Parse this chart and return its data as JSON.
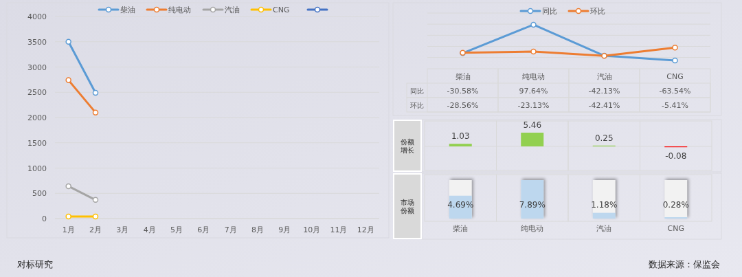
{
  "chart_data": [
    {
      "type": "line",
      "categories": [
        "1月",
        "2月",
        "3月",
        "4月",
        "5月",
        "6月",
        "7月",
        "8月",
        "9月",
        "10月",
        "11月",
        "12月"
      ],
      "series": [
        {
          "name": "柴油",
          "color": "#5b9bd5",
          "values": [
            3500,
            2490,
            null,
            null,
            null,
            null,
            null,
            null,
            null,
            null,
            null,
            null
          ]
        },
        {
          "name": "纯电动",
          "color": "#ed7d31",
          "values": [
            2740,
            2100,
            null,
            null,
            null,
            null,
            null,
            null,
            null,
            null,
            null,
            null
          ]
        },
        {
          "name": "汽油",
          "color": "#a5a5a5",
          "values": [
            640,
            370,
            null,
            null,
            null,
            null,
            null,
            null,
            null,
            null,
            null,
            null
          ]
        },
        {
          "name": "CNG",
          "color": "#ffc000",
          "values": [
            40,
            40,
            null,
            null,
            null,
            null,
            null,
            null,
            null,
            null,
            null,
            null
          ]
        },
        {
          "color": "#4472c4",
          "values": [
            null,
            null,
            null,
            null,
            null,
            null,
            null,
            null,
            null,
            null,
            null,
            null
          ]
        }
      ],
      "ylim": [
        0,
        4000
      ],
      "yticks": [
        0,
        500,
        1000,
        1500,
        2000,
        2500,
        3000,
        3500,
        4000
      ],
      "grid": "y",
      "legend": "top",
      "marker": "circle",
      "annotations": [
        "对标研究"
      ]
    },
    {
      "type": "line",
      "categories": [
        "柴油",
        "纯电动",
        "汽油",
        "CNG"
      ],
      "series": [
        {
          "name": "同比",
          "color": "#5b9bd5",
          "values": [
            -30.58,
            97.64,
            -42.13,
            -63.54
          ],
          "value_labels": [
            "-30.58%",
            "97.64%",
            "-42.13%",
            "-63.54%"
          ]
        },
        {
          "name": "环比",
          "color": "#ed7d31",
          "values": [
            -28.56,
            -23.13,
            -42.41,
            -5.41
          ],
          "value_labels": [
            "-28.56%",
            "-23.13%",
            "-42.41%",
            "-5.41%"
          ]
        }
      ],
      "yticks": [
        {
          "value": -50,
          "label": null
        },
        {
          "value": 0,
          "label": null
        },
        {
          "value": 50,
          "label": null
        },
        {
          "value": 100,
          "label": null
        },
        {
          "value": 150,
          "label": null
        }
      ],
      "grid": "y",
      "tick_labels": false,
      "legend": "top",
      "marker": "circle"
    },
    {
      "type": "bar",
      "ylabel": "份额增长",
      "categories": [
        "柴油",
        "纯电动",
        "汽油",
        "CNG"
      ],
      "values": [
        1.03,
        5.46,
        0.25,
        -0.08
      ],
      "colors": [
        "#92d050",
        "#92d050",
        "#92d050",
        "#ff0000"
      ],
      "data_labels": true,
      "tick_labels": false
    },
    {
      "type": "bar",
      "ylabel": "市场份额",
      "categories": [
        "柴油",
        "纯电动",
        "汽油",
        "CNG"
      ],
      "values": [
        4.69,
        7.89,
        1.18,
        0.28
      ],
      "color": "#bdd7ee",
      "value_labels": [
        "4.69%",
        "7.89%",
        "1.18%",
        "0.28%"
      ],
      "annotations": [
        "数据来源：保监会"
      ]
    }
  ]
}
